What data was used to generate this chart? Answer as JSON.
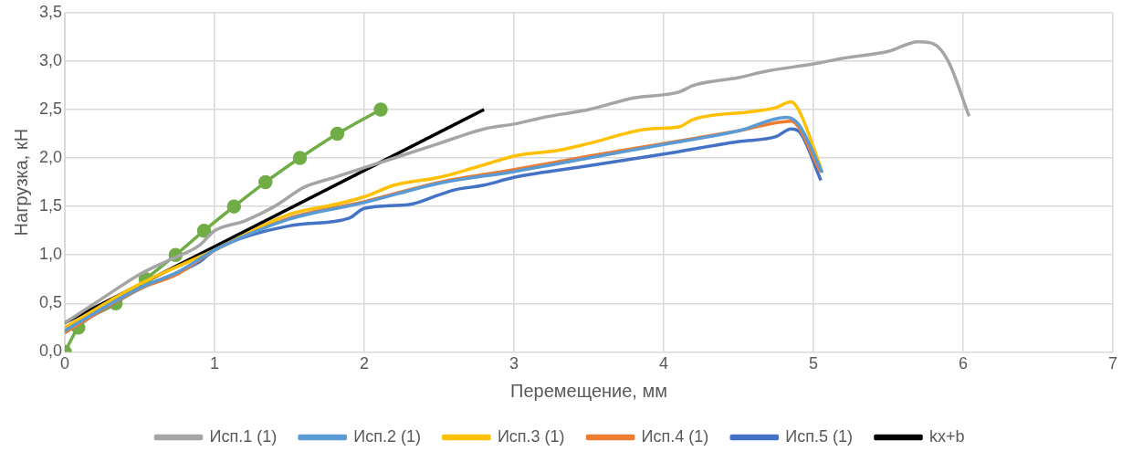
{
  "chart_data": {
    "type": "line",
    "xlabel": "Перемещение, мм",
    "ylabel": "Нагрузка, кН",
    "xlim": [
      0,
      7
    ],
    "xticks": [
      0,
      1,
      2,
      3,
      4,
      5,
      6,
      7
    ],
    "ylim": [
      0,
      3.5
    ],
    "yticks": [
      {
        "value": 0,
        "label": "0,0"
      },
      {
        "value": 0.5,
        "label": "0,5"
      },
      {
        "value": 1,
        "label": "1,0"
      },
      {
        "value": 1.5,
        "label": "1,5"
      },
      {
        "value": 2,
        "label": "2,0"
      },
      {
        "value": 2.5,
        "label": "2,5"
      },
      {
        "value": 3,
        "label": "3,0"
      },
      {
        "value": 3.5,
        "label": "3,5"
      }
    ],
    "grid": true,
    "legend": "bottom",
    "marker": "none",
    "line_style": "solid",
    "series": [
      {
        "name": "Исп.1 (1)",
        "color": "#a5a5a5",
        "x": [
          0,
          0.2,
          0.5,
          0.7,
          0.9,
          1.0,
          1.2,
          1.4,
          1.6,
          1.8,
          2.0,
          2.3,
          2.5,
          2.8,
          3.0,
          3.2,
          3.5,
          3.8,
          4.1,
          4.2,
          4.5,
          4.7,
          5.0,
          5.2,
          5.5,
          5.7,
          5.8,
          5.9,
          6.04
        ],
        "values": [
          0.3,
          0.5,
          0.8,
          0.95,
          1.1,
          1.25,
          1.35,
          1.5,
          1.7,
          1.8,
          1.9,
          2.05,
          2.15,
          2.3,
          2.35,
          2.42,
          2.5,
          2.62,
          2.68,
          2.75,
          2.83,
          2.9,
          2.97,
          3.03,
          3.1,
          3.2,
          3.18,
          3.0,
          2.43
        ]
      },
      {
        "name": "Исп.2 (1)",
        "color": "#5b9bd5",
        "x": [
          0,
          0.5,
          0.75,
          1.0,
          1.5,
          2.0,
          2.5,
          3.0,
          3.5,
          4.0,
          4.5,
          4.82,
          4.9,
          5.06
        ],
        "values": [
          0.22,
          0.66,
          0.82,
          1.05,
          1.37,
          1.54,
          1.74,
          1.86,
          2.0,
          2.14,
          2.28,
          2.42,
          2.35,
          1.85
        ]
      },
      {
        "name": "Исп.3 (1)",
        "color": "#ffc000",
        "x": [
          0,
          0.5,
          1.0,
          1.5,
          1.8,
          2.0,
          2.2,
          2.5,
          2.8,
          3.0,
          3.3,
          3.5,
          3.9,
          4.1,
          4.2,
          4.6,
          4.75,
          4.85,
          4.9,
          5.05
        ],
        "values": [
          0.25,
          0.7,
          1.05,
          1.42,
          1.52,
          1.6,
          1.72,
          1.8,
          1.93,
          2.02,
          2.08,
          2.15,
          2.3,
          2.32,
          2.4,
          2.48,
          2.52,
          2.58,
          2.5,
          1.9
        ]
      },
      {
        "name": "Исп.4 (1)",
        "color": "#ed7d31",
        "x": [
          0,
          0.5,
          0.75,
          1.0,
          1.5,
          2.0,
          2.5,
          3.0,
          3.5,
          4.0,
          4.5,
          4.85,
          5.05
        ],
        "values": [
          0.2,
          0.65,
          0.8,
          1.05,
          1.38,
          1.55,
          1.75,
          1.88,
          2.02,
          2.15,
          2.28,
          2.38,
          1.85
        ]
      },
      {
        "name": "Исп.5 (1)",
        "color": "#4472c4",
        "x": [
          0,
          0.5,
          0.9,
          1.0,
          1.5,
          1.9,
          2.0,
          2.3,
          2.5,
          2.6,
          2.8,
          3.0,
          3.5,
          4.0,
          4.5,
          4.75,
          4.85,
          4.9,
          5.05
        ],
        "values": [
          0.2,
          0.65,
          0.93,
          1.05,
          1.3,
          1.38,
          1.48,
          1.52,
          1.62,
          1.67,
          1.72,
          1.8,
          1.92,
          2.04,
          2.17,
          2.22,
          2.3,
          2.28,
          1.77
        ]
      },
      {
        "color": "#70ad47",
        "marker": "circle",
        "x": [
          0,
          0.09,
          0.34,
          0.54,
          0.74,
          0.93,
          1.13,
          1.34,
          1.57,
          1.82,
          2.11
        ],
        "values": [
          0,
          0.25,
          0.5,
          0.75,
          1.0,
          1.25,
          1.5,
          1.75,
          2.0,
          2.25,
          2.5
        ]
      },
      {
        "name": "kx+b",
        "color": "#000000",
        "x": [
          0,
          2.8
        ],
        "values": [
          0.3,
          2.5
        ]
      }
    ]
  }
}
